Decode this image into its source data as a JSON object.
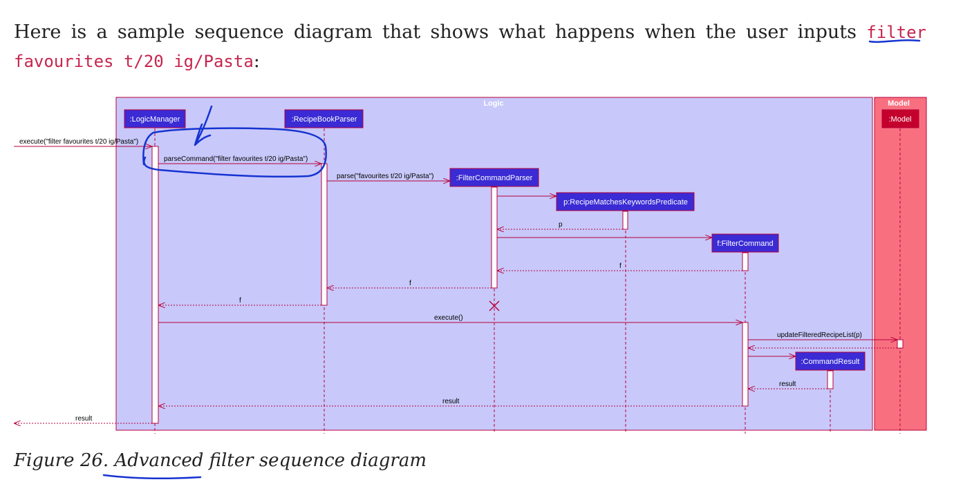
{
  "intro": {
    "text": "Here is a sample sequence diagram that shows what happens when the user inputs",
    "command": "filter favourites t/20 ig/Pasta",
    "suffix": ":"
  },
  "caption": "Figure 26. Advanced filter sequence diagram",
  "colors": {
    "logic_frame": "#c8c8fa",
    "model_frame": "#f87080",
    "participant": "#3a2bd4",
    "border": "#b8003a",
    "annotation": "#1533d1"
  },
  "frames": {
    "logic": "Logic",
    "model": "Model"
  },
  "participants": {
    "logic_manager": ":LogicManager",
    "recipe_book_parser": ":RecipeBookParser",
    "filter_command_parser": ":FilterCommandParser",
    "predicate": "p:RecipeMatchesKeywordsPredicate",
    "filter_command": "f:FilterCommand",
    "command_result": ":CommandResult",
    "model": ":Model"
  },
  "messages": {
    "m_execute_in": "execute(\"filter favourites t/20 ig/Pasta\")",
    "m_parse_command": "parseCommand(\"filter favourites t/20 ig/Pasta\")",
    "m_parse": "parse(\"favourites t/20 ig/Pasta\")",
    "m_ret_p": "p",
    "m_ret_f1": "f",
    "m_ret_f2": "f",
    "m_ret_f3": "f",
    "m_execute": "execute()",
    "m_update": "updateFilteredRecipeList(p)",
    "m_result1": "result",
    "m_result2": "result",
    "m_result_out": "result"
  }
}
